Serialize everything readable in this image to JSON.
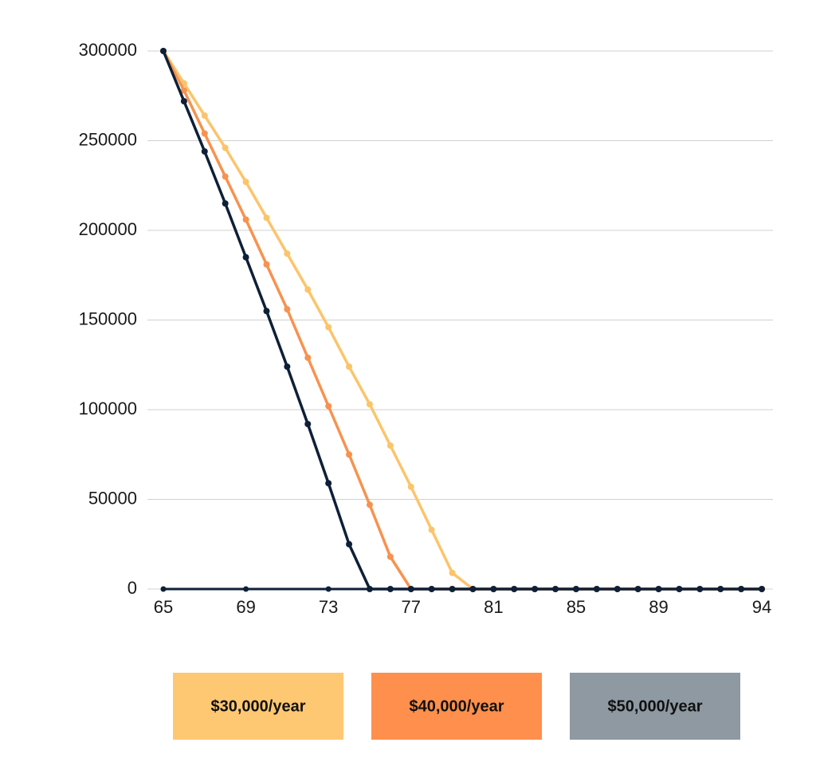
{
  "chart_data": {
    "type": "line",
    "x": [
      65,
      66,
      67,
      68,
      69,
      70,
      71,
      72,
      73,
      74,
      75,
      76,
      77,
      78,
      79,
      80,
      81,
      82,
      83,
      84,
      85,
      86,
      87,
      88,
      89,
      90,
      91,
      92,
      93,
      94
    ],
    "series": [
      {
        "name": "$30,000/year",
        "color": "#fcc46a",
        "legend_color": "#fec872",
        "values": [
          300000,
          282000,
          264000,
          246000,
          227000,
          207000,
          187000,
          167000,
          146000,
          124000,
          103000,
          80000,
          57000,
          33000,
          9000,
          0,
          0,
          0,
          0,
          0,
          0,
          0,
          0,
          0,
          0,
          0,
          0,
          0,
          0,
          0
        ]
      },
      {
        "name": "$40,000/year",
        "color": "#f7924f",
        "legend_color": "#fe8f4c",
        "values": [
          300000,
          278000,
          254000,
          230000,
          206000,
          181000,
          156000,
          129000,
          102000,
          75000,
          47000,
          18000,
          0,
          0,
          0,
          0,
          0,
          0,
          0,
          0,
          0,
          0,
          0,
          0,
          0,
          0,
          0,
          0,
          0,
          0
        ]
      },
      {
        "name": "$50,000/year",
        "color": "#0e2038",
        "legend_color": "#8e99a2",
        "values": [
          300000,
          272000,
          244000,
          215000,
          185000,
          155000,
          124000,
          92000,
          59000,
          25000,
          0,
          0,
          0,
          0,
          0,
          0,
          0,
          0,
          0,
          0,
          0,
          0,
          0,
          0,
          0,
          0,
          0,
          0,
          0,
          0
        ]
      }
    ],
    "xlim": [
      65,
      94
    ],
    "xticks": [
      65,
      69,
      73,
      77,
      81,
      85,
      89,
      94
    ],
    "ylim": [
      0,
      300000
    ],
    "yticks": [
      0,
      50000,
      100000,
      150000,
      200000,
      250000,
      300000
    ],
    "grid": true,
    "markers": true,
    "legend": "bottom"
  }
}
